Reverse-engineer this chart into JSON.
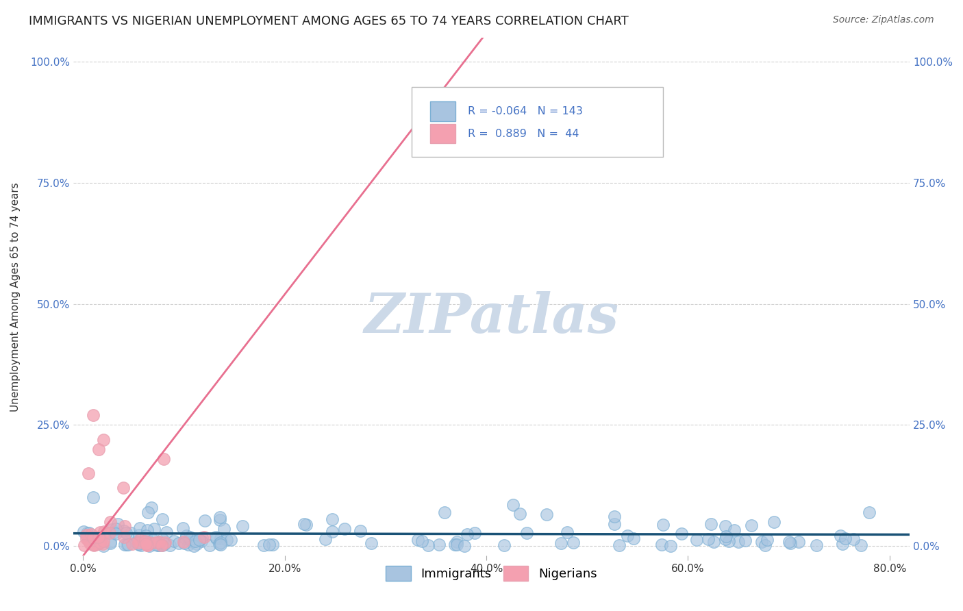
{
  "title": "IMMIGRANTS VS NIGERIAN UNEMPLOYMENT AMONG AGES 65 TO 74 YEARS CORRELATION CHART",
  "source": "Source: ZipAtlas.com",
  "ylabel": "Unemployment Among Ages 65 to 74 years",
  "xlabel": "",
  "xlim": [
    -0.01,
    0.82
  ],
  "ylim": [
    -0.02,
    1.05
  ],
  "xticks": [
    0.0,
    0.2,
    0.4,
    0.6,
    0.8
  ],
  "xtick_labels": [
    "0.0%",
    "20.0%",
    "40.0%",
    "60.0%",
    "80.0%"
  ],
  "yticks": [
    0.0,
    0.25,
    0.5,
    0.75,
    1.0
  ],
  "ytick_labels": [
    "0.0%",
    "25.0%",
    "50.0%",
    "75.0%",
    "100.0%"
  ],
  "immigrants_R": -0.064,
  "immigrants_N": 143,
  "nigerians_R": 0.889,
  "nigerians_N": 44,
  "immigrant_color": "#a8c4e0",
  "nigerian_color": "#f4a0b0",
  "immigrant_line_color": "#1a5276",
  "nigerian_line_color": "#e87090",
  "watermark_color": "#ccd9e8",
  "background_color": "#ffffff",
  "grid_color": "#cccccc",
  "title_fontsize": 13,
  "tick_label_color_y": "#4472c4"
}
